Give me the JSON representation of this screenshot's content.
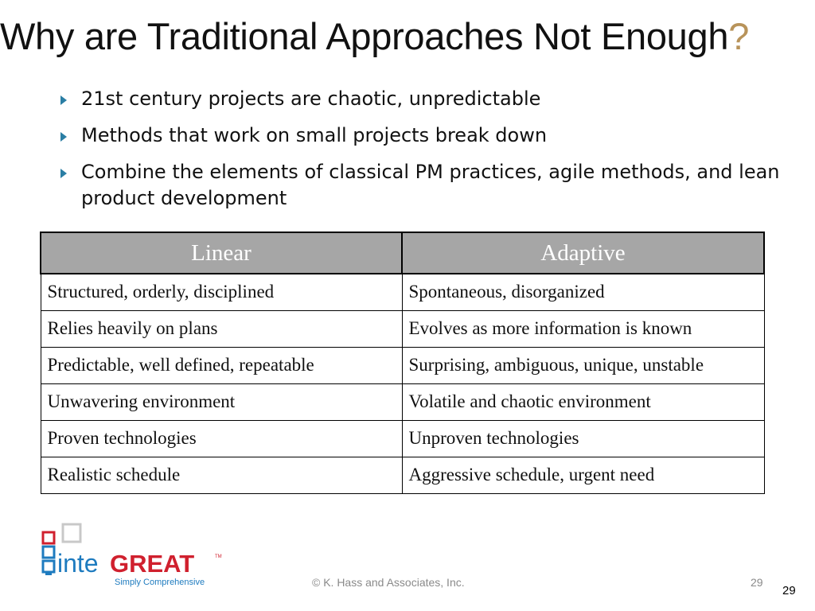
{
  "slide": {
    "title": "Why are Traditional Approaches Not Enough",
    "title_qmark": "?",
    "bullets": [
      "21st century projects are chaotic, unpredictable",
      "Methods that work on small projects break down",
      "Combine the elements of classical PM practices, agile methods, and lean product development"
    ]
  },
  "table": {
    "headers": [
      "Linear",
      "Adaptive"
    ],
    "rows": [
      [
        "Structured, orderly, disciplined",
        "Spontaneous, disorganized"
      ],
      [
        "Relies heavily on plans",
        "Evolves as more information is known"
      ],
      [
        "Predictable, well defined, repeatable",
        "Surprising, ambiguous, unique, unstable"
      ],
      [
        "Unwavering environment",
        "Volatile and chaotic environment"
      ],
      [
        "Proven technologies",
        "Unproven technologies"
      ],
      [
        "Realistic schedule",
        "Aggressive schedule, urgent need"
      ]
    ]
  },
  "logo": {
    "text_prefix": "inte",
    "text_brand": "GREAT",
    "trademark": "TM",
    "tagline": "Simply Comprehensive"
  },
  "footer": {
    "copyright": "© K. Hass and Associates, Inc.",
    "page_number_gray": "29",
    "page_number": "29"
  },
  "colors": {
    "header_bg": "#a6a6a6",
    "bullet_arrow": "#2a7ea4",
    "qmark": "#b8935a",
    "logo_blue": "#1e7bbf",
    "logo_red": "#d0202e",
    "logo_navy": "#1b2a6b"
  }
}
